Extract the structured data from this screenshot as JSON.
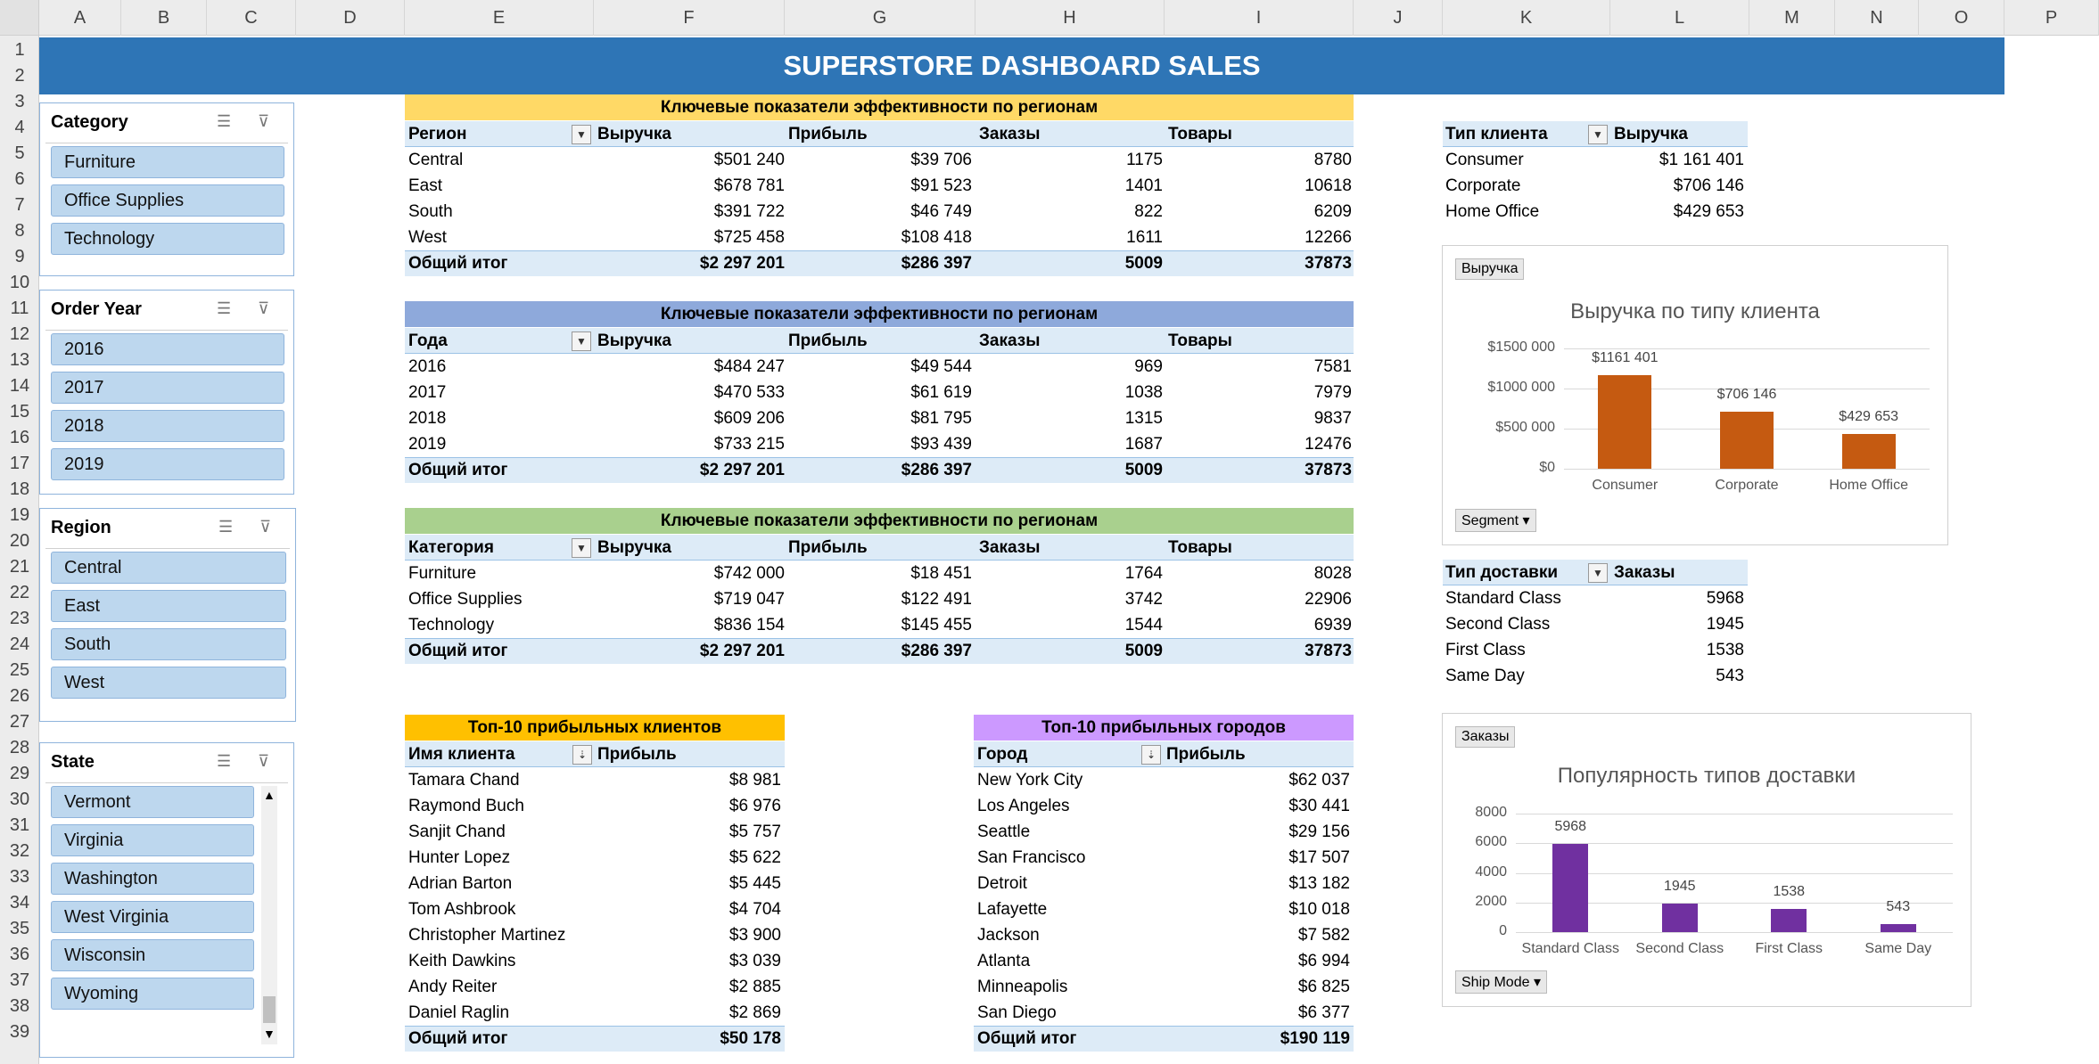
{
  "colors": {
    "banner": "#2e75b6",
    "kpi_region": "#ffd966",
    "kpi_year": "#8ea9db",
    "kpi_category": "#a9d08e",
    "top_clients": "#ffc000",
    "top_cities": "#cc99ff",
    "segment_bar": "#c55a11",
    "shipmode_bar": "#7030a0",
    "header_fill": "#ddebf7",
    "slicer_fill": "#bdd7ee"
  },
  "columns": [
    "A",
    "B",
    "C",
    "D",
    "E",
    "F",
    "G",
    "H",
    "I",
    "J",
    "K",
    "L",
    "M",
    "N",
    "O",
    "P"
  ],
  "rows": [
    "1",
    "2",
    "3",
    "4",
    "5",
    "6",
    "7",
    "8",
    "9",
    "10",
    "11",
    "12",
    "13",
    "14",
    "15",
    "16",
    "17",
    "18",
    "19",
    "20",
    "21",
    "22",
    "23",
    "24",
    "25",
    "26",
    "27",
    "28",
    "29",
    "30",
    "31",
    "32",
    "33",
    "34",
    "35",
    "36",
    "37",
    "38",
    "39"
  ],
  "banner": "SUPERSTORE DASHBOARD SALES",
  "slicers": {
    "category": {
      "title": "Category",
      "items": [
        "Furniture",
        "Office Supplies",
        "Technology"
      ]
    },
    "year": {
      "title": "Order Year",
      "items": [
        "2016",
        "2017",
        "2018",
        "2019"
      ]
    },
    "region": {
      "title": "Region",
      "items": [
        "Central",
        "East",
        "South",
        "West"
      ]
    },
    "state": {
      "title": "State",
      "items": [
        "Vermont",
        "Virginia",
        "Washington",
        "West Virginia",
        "Wisconsin",
        "Wyoming"
      ]
    },
    "icons": {
      "multi": "multi-select-icon",
      "clear": "clear-filter-icon"
    }
  },
  "kpi_region": {
    "title": "Ключевые показатели эффективности по регионам",
    "headers": [
      "Регион",
      "Выручка",
      "Прибыль",
      "Заказы",
      "Товары"
    ],
    "rows": [
      [
        "Central",
        "$501 240",
        "$39 706",
        "1175",
        "8780"
      ],
      [
        "East",
        "$678 781",
        "$91 523",
        "1401",
        "10618"
      ],
      [
        "South",
        "$391 722",
        "$46 749",
        "822",
        "6209"
      ],
      [
        "West",
        "$725 458",
        "$108 418",
        "1611",
        "12266"
      ]
    ],
    "total": [
      "Общий итог",
      "$2 297 201",
      "$286 397",
      "5009",
      "37873"
    ]
  },
  "kpi_year": {
    "title": "Ключевые показатели эффективности по регионам",
    "headers": [
      "Года",
      "Выручка",
      "Прибыль",
      "Заказы",
      "Товары"
    ],
    "rows": [
      [
        "2016",
        "$484 247",
        "$49 544",
        "969",
        "7581"
      ],
      [
        "2017",
        "$470 533",
        "$61 619",
        "1038",
        "7979"
      ],
      [
        "2018",
        "$609 206",
        "$81 795",
        "1315",
        "9837"
      ],
      [
        "2019",
        "$733 215",
        "$93 439",
        "1687",
        "12476"
      ]
    ],
    "total": [
      "Общий итог",
      "$2 297 201",
      "$286 397",
      "5009",
      "37873"
    ]
  },
  "kpi_category": {
    "title": "Ключевые показатели эффективности по регионам",
    "headers": [
      "Категория",
      "Выручка",
      "Прибыль",
      "Заказы",
      "Товары"
    ],
    "rows": [
      [
        "Furniture",
        "$742 000",
        "$18 451",
        "1764",
        "8028"
      ],
      [
        "Office Supplies",
        "$719 047",
        "$122 491",
        "3742",
        "22906"
      ],
      [
        "Technology",
        "$836 154",
        "$145 455",
        "1544",
        "6939"
      ]
    ],
    "total": [
      "Общий итог",
      "$2 297 201",
      "$286 397",
      "5009",
      "37873"
    ]
  },
  "top_clients": {
    "title": "Топ-10 прибыльных клиентов",
    "headers": [
      "Имя клиента",
      "Прибыль"
    ],
    "rows": [
      [
        "Tamara Chand",
        "$8 981"
      ],
      [
        "Raymond Buch",
        "$6 976"
      ],
      [
        "Sanjit Chand",
        "$5 757"
      ],
      [
        "Hunter Lopez",
        "$5 622"
      ],
      [
        "Adrian Barton",
        "$5 445"
      ],
      [
        "Tom Ashbrook",
        "$4 704"
      ],
      [
        "Christopher Martinez",
        "$3 900"
      ],
      [
        "Keith Dawkins",
        "$3 039"
      ],
      [
        "Andy Reiter",
        "$2 885"
      ],
      [
        "Daniel Raglin",
        "$2 869"
      ]
    ],
    "total": [
      "Общий итог",
      "$50 178"
    ]
  },
  "top_cities": {
    "title": "Топ-10 прибыльных городов",
    "headers": [
      "Город",
      "Прибыль"
    ],
    "rows": [
      [
        "New York City",
        "$62 037"
      ],
      [
        "Los Angeles",
        "$30 441"
      ],
      [
        "Seattle",
        "$29 156"
      ],
      [
        "San Francisco",
        "$17 507"
      ],
      [
        "Detroit",
        "$13 182"
      ],
      [
        "Lafayette",
        "$10 018"
      ],
      [
        "Jackson",
        "$7 582"
      ],
      [
        "Atlanta",
        "$6 994"
      ],
      [
        "Minneapolis",
        "$6 825"
      ],
      [
        "San Diego",
        "$6 377"
      ]
    ],
    "total": [
      "Общий итог",
      "$190 119"
    ]
  },
  "segment_table": {
    "headers": [
      "Тип клиента",
      "Выручка"
    ],
    "rows": [
      [
        "Consumer",
        "$1 161 401"
      ],
      [
        "Corporate",
        "$706 146"
      ],
      [
        "Home Office",
        "$429 653"
      ]
    ]
  },
  "shipmode_table": {
    "headers": [
      "Тип доставки",
      "Заказы"
    ],
    "rows": [
      [
        "Standard Class",
        "5968"
      ],
      [
        "Second Class",
        "1945"
      ],
      [
        "First Class",
        "1538"
      ],
      [
        "Same Day",
        "543"
      ]
    ]
  },
  "chart_data": [
    {
      "type": "bar",
      "title": "Выручка по типу клиента",
      "field_button": "Выручка",
      "axis_button": "Segment",
      "categories": [
        "Consumer",
        "Corporate",
        "Home Office"
      ],
      "values": [
        1161401,
        706146,
        429653
      ],
      "data_labels": [
        "$1161 401",
        "$706 146",
        "$429 653"
      ],
      "yticks": [
        "$0",
        "$500 000",
        "$1000 000",
        "$1500 000"
      ],
      "ylim": [
        0,
        1500000
      ],
      "grid": true
    },
    {
      "type": "bar",
      "title": "Популярность типов доставки",
      "field_button": "Заказы",
      "axis_button": "Ship Mode",
      "categories": [
        "Standard Class",
        "Second Class",
        "First Class",
        "Same Day"
      ],
      "values": [
        5968,
        1945,
        1538,
        543
      ],
      "data_labels": [
        "5968",
        "1945",
        "1538",
        "543"
      ],
      "yticks": [
        "0",
        "2000",
        "4000",
        "6000",
        "8000"
      ],
      "ylim": [
        0,
        8000
      ],
      "grid": true
    }
  ]
}
